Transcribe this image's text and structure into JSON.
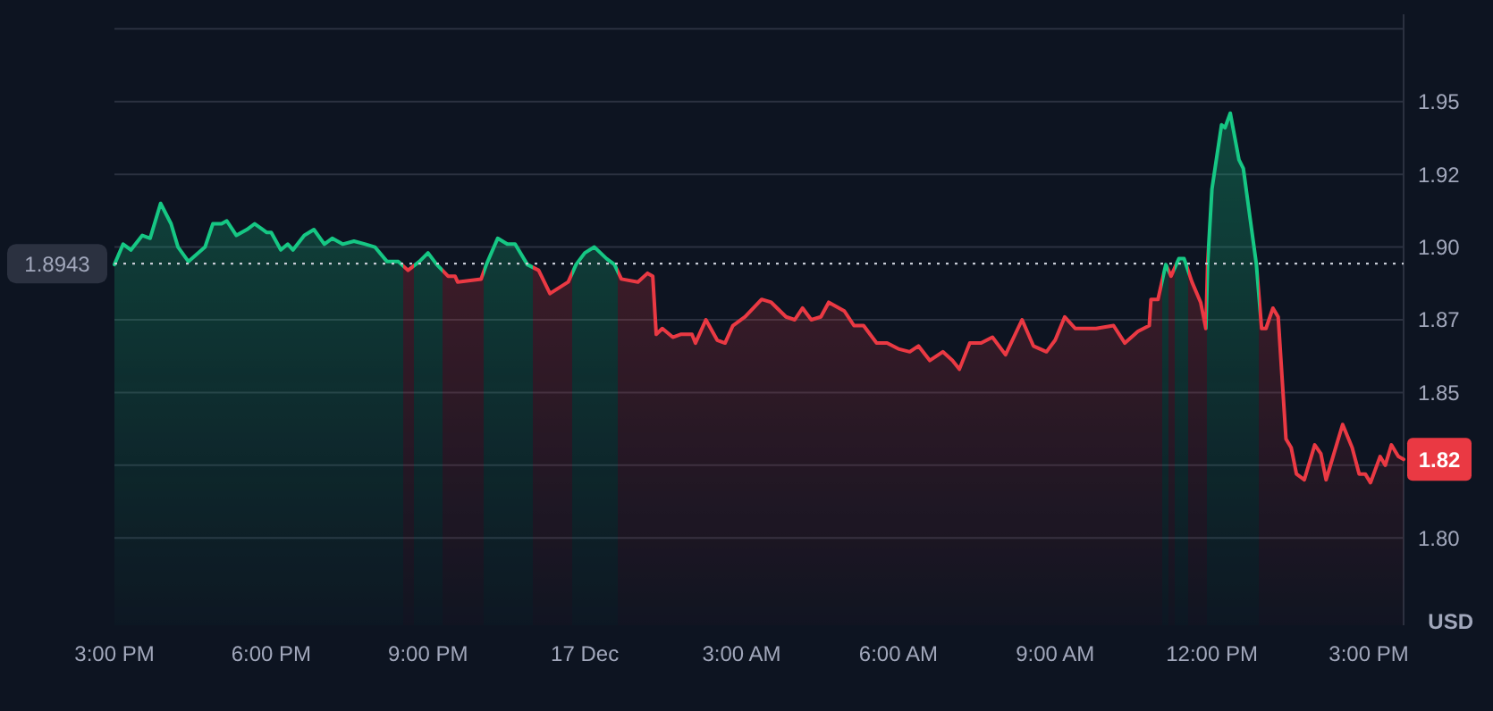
{
  "chart_data": {
    "type": "area",
    "ylabel": "USD",
    "x": [
      "--12-16T15:00",
      "--12-16T15:10",
      "--12-16T15:19",
      "--12-16T15:32",
      "--12-16T15:41",
      "--12-16T15:53",
      "--12-16T16:05",
      "--12-16T16:13",
      "--12-16T16:25",
      "--12-16T16:44",
      "--12-16T16:53",
      "--12-16T17:03",
      "--12-16T17:09",
      "--12-16T17:20",
      "--12-16T17:32",
      "--12-16T17:41",
      "--12-16T17:55",
      "--12-16T18:00",
      "--12-16T18:11",
      "--12-16T18:19",
      "--12-16T18:25",
      "--12-16T18:38",
      "--12-16T18:49",
      "--12-16T19:01",
      "--12-16T19:10",
      "--12-16T19:22",
      "--12-16T19:35",
      "--12-16T19:48",
      "--12-16T19:59",
      "--12-16T20:13",
      "--12-16T20:26",
      "--12-16T20:37",
      "--12-16T20:50",
      "--12-16T21:00",
      "--12-16T21:10",
      "--12-16T21:23",
      "--12-16T21:31",
      "--12-16T21:34",
      "--12-16T22:01",
      "--12-16T22:07",
      "--12-16T22:20",
      "--12-16T22:31",
      "--12-16T22:40",
      "--12-16T22:54",
      "--12-16T23:07",
      "--12-16T23:20",
      "--12-16T23:41",
      "--12-16T23:50",
      "--12-17T00:00",
      "--12-17T00:11",
      "--12-17T00:25",
      "--12-17T00:34",
      "--12-17T00:42",
      "--12-17T01:01",
      "--12-17T01:12",
      "--12-17T01:18",
      "--12-17T01:22",
      "--12-17T01:29",
      "--12-17T01:41",
      "--12-17T01:50",
      "--12-17T02:03",
      "--12-17T02:07",
      "--12-17T02:19",
      "--12-17T02:32",
      "--12-17T02:41",
      "--12-17T02:50",
      "--12-17T03:04",
      "--12-17T03:23",
      "--12-17T03:34",
      "--12-17T03:51",
      "--12-17T04:01",
      "--12-17T04:10",
      "--12-17T04:20",
      "--12-17T04:31",
      "--12-17T04:40",
      "--12-17T04:58",
      "--12-17T05:09",
      "--12-17T05:20",
      "--12-17T05:35",
      "--12-17T05:47",
      "--12-17T06:00",
      "--12-17T06:13",
      "--12-17T06:23",
      "--12-17T06:36",
      "--12-17T06:51",
      "--12-17T07:02",
      "--12-17T07:10",
      "--12-17T07:22",
      "--12-17T07:35",
      "--12-17T07:48",
      "--12-17T08:03",
      "--12-17T08:22",
      "--12-17T08:35",
      "--12-17T08:50",
      "--12-17T09:00",
      "--12-17T09:11",
      "--12-17T09:23",
      "--12-17T09:47",
      "--12-17T10:07",
      "--12-17T10:20",
      "--12-17T10:35",
      "--12-17T10:48",
      "--12-17T10:50",
      "--12-17T10:58",
      "--12-17T11:07",
      "--12-17T11:13",
      "--12-17T11:22",
      "--12-17T11:28",
      "--12-17T11:37",
      "--12-17T11:47",
      "--12-17T11:53",
      "--12-17T11:55",
      "--12-17T12:00",
      "--12-17T12:11",
      "--12-17T12:15",
      "--12-17T12:21",
      "--12-17T12:31",
      "--12-17T12:36",
      "--12-17T12:51",
      "--12-17T12:57",
      "--12-17T13:02",
      "--12-17T13:10",
      "--12-17T13:16",
      "--12-17T13:25",
      "--12-17T13:31",
      "--12-17T13:37",
      "--12-17T13:46",
      "--12-17T13:58",
      "--12-17T14:05",
      "--12-17T14:11",
      "--12-17T14:19",
      "--12-17T14:30",
      "--12-17T14:41",
      "--12-17T14:49",
      "--12-17T14:56",
      "--12-17T15:02",
      "--12-17T15:13",
      "--12-17T15:19",
      "--12-17T15:26",
      "--12-17T15:34",
      "--12-17T15:40"
    ],
    "series": [
      {
        "colors": [
          "#16c784",
          "#16c784",
          "#16c784",
          "#16c784",
          "#16c784",
          "#16c784",
          "#16c784",
          "#16c784",
          "#16c784",
          "#16c784",
          "#16c784",
          "#16c784",
          "#16c784",
          "#16c784",
          "#16c784",
          "#16c784",
          "#16c784",
          "#16c784",
          "#16c784",
          "#16c784",
          "#16c784",
          "#16c784",
          "#16c784",
          "#16c784",
          "#16c784",
          "#16c784",
          "#16c784",
          "#16c784",
          "#16c784",
          "#16c784",
          "#16c784",
          "#ea3943",
          "#16c784",
          "#16c784",
          "#16c784",
          "#ea3943",
          "#ea3943",
          "#ea3943",
          "#ea3943",
          "#16c784",
          "#16c784",
          "#16c784",
          "#16c784",
          "#16c784",
          "#ea3943",
          "#ea3943",
          "#ea3943",
          "#16c784",
          "#16c784",
          "#16c784",
          "#16c784",
          "#16c784",
          "#ea3943",
          "#ea3943",
          "#ea3943",
          "#ea3943",
          "#ea3943",
          "#ea3943",
          "#ea3943",
          "#ea3943",
          "#ea3943",
          "#ea3943",
          "#ea3943",
          "#ea3943",
          "#ea3943",
          "#ea3943",
          "#ea3943",
          "#ea3943",
          "#ea3943",
          "#ea3943",
          "#ea3943",
          "#ea3943",
          "#ea3943",
          "#ea3943",
          "#ea3943",
          "#ea3943",
          "#ea3943",
          "#ea3943",
          "#ea3943",
          "#ea3943",
          "#ea3943",
          "#ea3943",
          "#ea3943",
          "#ea3943",
          "#ea3943",
          "#ea3943",
          "#ea3943",
          "#ea3943",
          "#ea3943",
          "#ea3943",
          "#ea3943",
          "#ea3943",
          "#ea3943",
          "#ea3943",
          "#ea3943",
          "#ea3943",
          "#ea3943",
          "#ea3943",
          "#ea3943",
          "#ea3943",
          "#ea3943",
          "#ea3943",
          "#ea3943",
          "#ea3943",
          "#16c784",
          "#ea3943",
          "#16c784",
          "#16c784",
          "#ea3943",
          "#ea3943",
          "#ea3943",
          "#16c784",
          "#16c784",
          "#16c784",
          "#16c784",
          "#16c784",
          "#16c784",
          "#16c784",
          "#16c784",
          "#ea3943",
          "#ea3943",
          "#ea3943",
          "#ea3943",
          "#ea3943",
          "#ea3943",
          "#ea3943",
          "#ea3943",
          "#ea3943",
          "#ea3943",
          "#ea3943",
          "#ea3943",
          "#ea3943",
          "#ea3943",
          "#ea3943",
          "#ea3943",
          "#ea3943",
          "#ea3943",
          "#ea3943",
          "#ea3943",
          "#ea3943",
          "#ea3943"
        ],
        "values": [
          1.894,
          1.901,
          1.899,
          1.904,
          1.903,
          1.915,
          1.908,
          1.9,
          1.895,
          1.9,
          1.908,
          1.908,
          1.909,
          1.904,
          1.906,
          1.908,
          1.905,
          1.905,
          1.899,
          1.901,
          1.899,
          1.904,
          1.906,
          1.901,
          1.903,
          1.901,
          1.902,
          1.901,
          1.9,
          1.895,
          1.895,
          1.892,
          1.895,
          1.898,
          1.894,
          1.89,
          1.89,
          1.888,
          1.889,
          1.894,
          1.903,
          1.901,
          1.901,
          1.894,
          1.892,
          1.884,
          1.888,
          1.894,
          1.898,
          1.9,
          1.896,
          1.894,
          1.889,
          1.888,
          1.891,
          1.89,
          1.87,
          1.872,
          1.869,
          1.87,
          1.87,
          1.867,
          1.875,
          1.868,
          1.867,
          1.873,
          1.876,
          1.882,
          1.881,
          1.876,
          1.875,
          1.879,
          1.875,
          1.876,
          1.881,
          1.878,
          1.873,
          1.873,
          1.867,
          1.867,
          1.865,
          1.864,
          1.866,
          1.861,
          1.864,
          1.861,
          1.858,
          1.867,
          1.867,
          1.869,
          1.863,
          1.875,
          1.866,
          1.864,
          1.868,
          1.876,
          1.872,
          1.872,
          1.873,
          1.867,
          1.871,
          1.873,
          1.882,
          1.882,
          1.894,
          1.89,
          1.896,
          1.896,
          1.888,
          1.881,
          1.872,
          1.894,
          1.92,
          1.942,
          1.941,
          1.946,
          1.93,
          1.927,
          1.894,
          1.872,
          1.872,
          1.879,
          1.876,
          1.834,
          1.831,
          1.822,
          1.82,
          1.832,
          1.829,
          1.82,
          1.828,
          1.839,
          1.831,
          1.822,
          1.822,
          1.819,
          1.828,
          1.825,
          1.832,
          1.828,
          1.827
        ]
      }
    ],
    "xlim": [
      "--12-16T15:00",
      "--12-17T15:40"
    ],
    "xticks": [
      {
        "value": "--12-16T15:00",
        "label": "3:00 PM"
      },
      {
        "value": "--12-16T18:00",
        "label": "6:00 PM"
      },
      {
        "value": "--12-16T21:00",
        "label": "9:00 PM"
      },
      {
        "value": "--12-17T00:00",
        "label": "17 Dec"
      },
      {
        "value": "--12-17T03:00",
        "label": "3:00 AM"
      },
      {
        "value": "--12-17T06:00",
        "label": "6:00 AM"
      },
      {
        "value": "--12-17T09:00",
        "label": "9:00 AM"
      },
      {
        "value": "--12-17T12:00",
        "label": "12:00 PM"
      },
      {
        "value": "--12-17T15:00",
        "label": "3:00 PM"
      }
    ],
    "ylim": [
      1.77,
      1.98
    ],
    "yticks": [
      {
        "value": 1.8,
        "label": "1.80"
      },
      {
        "value": 1.825,
        "label": null
      },
      1.85,
      {
        "value": 1.875,
        "label": "1.87"
      },
      {
        "value": 1.9,
        "label": "1.90"
      },
      {
        "value": 1.925,
        "label": "1.92"
      },
      1.95,
      {
        "value": 1.975,
        "label": null
      }
    ],
    "grid": "y",
    "ref_lines": [
      {
        "axis": "y",
        "value": 1.8943,
        "label": "1.8943",
        "line_style": "dotted"
      }
    ],
    "annotations": [
      {
        "text": "1.82",
        "x": "--12-17T15:40",
        "y": 1.827
      }
    ]
  }
}
